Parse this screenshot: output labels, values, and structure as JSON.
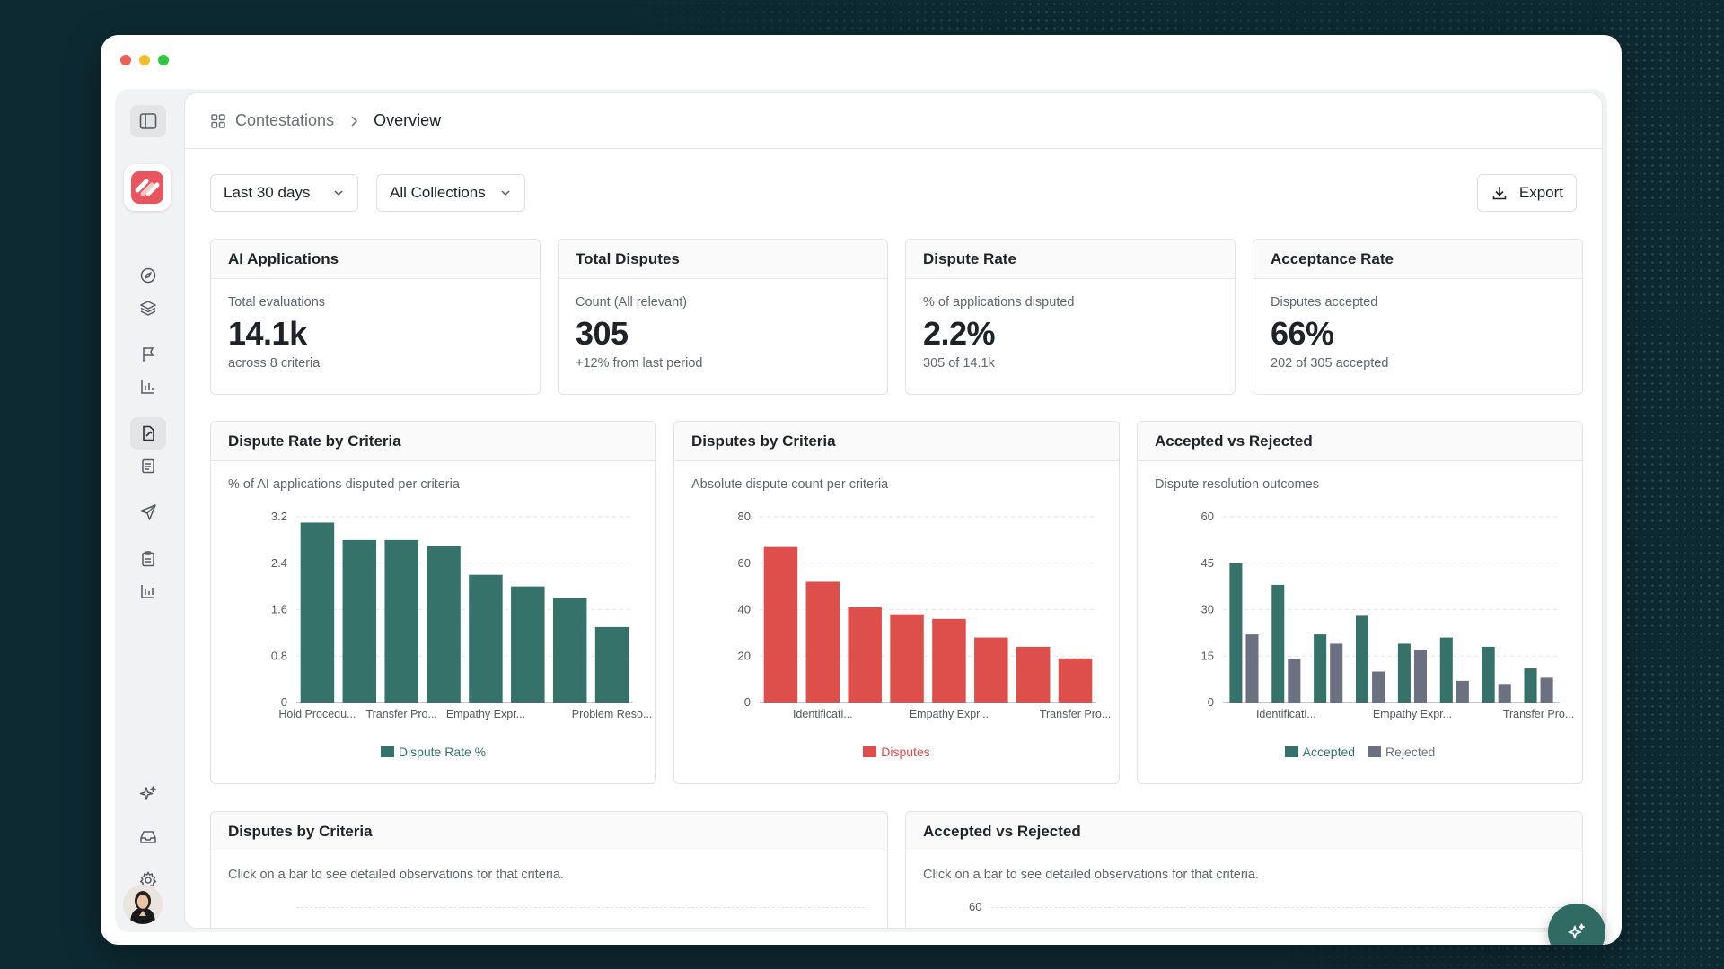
{
  "breadcrumb": {
    "root": "Contestations",
    "current": "Overview"
  },
  "filters": {
    "date_range": "Last 30 days",
    "collections": "All Collections",
    "export_label": "Export"
  },
  "kpis": [
    {
      "title": "AI Applications",
      "label": "Total evaluations",
      "value": "14.1k",
      "sub": "across 8 criteria"
    },
    {
      "title": "Total Disputes",
      "label": "Count (All relevant)",
      "value": "305",
      "sub": "+12% from last period"
    },
    {
      "title": "Dispute Rate",
      "label": "% of applications disputed",
      "value": "2.2%",
      "sub": "305 of 14.1k"
    },
    {
      "title": "Acceptance Rate",
      "label": "Disputes accepted",
      "value": "66%",
      "sub": "202 of 305 accepted"
    }
  ],
  "charts": [
    {
      "title": "Dispute Rate by Criteria",
      "desc": "% of AI applications disputed per criteria"
    },
    {
      "title": "Disputes by Criteria",
      "desc": "Absolute dispute count per criteria"
    },
    {
      "title": "Accepted vs Rejected",
      "desc": "Dispute resolution outcomes"
    }
  ],
  "bottom": [
    {
      "title": "Disputes by Criteria",
      "desc": "Click on a bar to see detailed observations for that criteria."
    },
    {
      "title": "Accepted vs Rejected",
      "desc": "Click on a bar to see detailed observations for that criteria."
    }
  ],
  "colors": {
    "teal": "#35736a",
    "red": "#de4f4c",
    "gray": "#6b7180"
  },
  "chart_data": [
    {
      "type": "bar",
      "title": "Dispute Rate by Criteria",
      "categories": [
        "Hold Procedu...",
        "",
        "Transfer Pro...",
        "",
        "Empathy Expr...",
        "",
        "",
        "Problem Reso..."
      ],
      "series": [
        {
          "name": "Dispute Rate %",
          "values": [
            3.1,
            2.8,
            2.8,
            2.7,
            2.2,
            2.0,
            1.8,
            1.3
          ]
        }
      ],
      "yticks": [
        "0",
        "0.8",
        "1.6",
        "2.4",
        "3.2"
      ],
      "ylim": [
        0,
        3.2
      ]
    },
    {
      "type": "bar",
      "title": "Disputes by Criteria",
      "categories": [
        "",
        "Identificati...",
        "",
        "",
        "Empathy Expr...",
        "",
        "",
        "Transfer Pro..."
      ],
      "series": [
        {
          "name": "Disputes",
          "values": [
            67,
            52,
            41,
            38,
            36,
            28,
            24,
            19
          ]
        }
      ],
      "yticks": [
        "0",
        "20",
        "40",
        "60",
        "80"
      ],
      "ylim": [
        0,
        80
      ]
    },
    {
      "type": "bar",
      "title": "Accepted vs Rejected",
      "categories": [
        "",
        "Identificati...",
        "",
        "",
        "Empathy Expr...",
        "",
        "",
        "Transfer Pro..."
      ],
      "series": [
        {
          "name": "Accepted",
          "values": [
            45,
            38,
            22,
            28,
            19,
            21,
            18,
            11
          ]
        },
        {
          "name": "Rejected",
          "values": [
            22,
            14,
            19,
            10,
            17,
            7,
            6,
            8
          ]
        }
      ],
      "yticks": [
        "0",
        "15",
        "30",
        "45",
        "60"
      ],
      "ylim": [
        0,
        60
      ]
    }
  ],
  "bottom_axis": {
    "ytick_top": "60"
  }
}
